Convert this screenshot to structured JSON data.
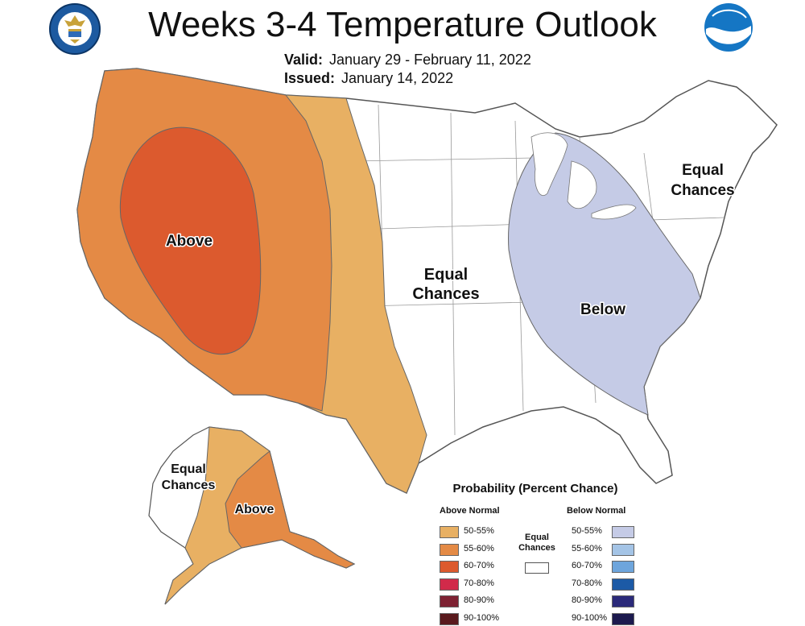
{
  "title": "Weeks 3-4 Temperature Outlook",
  "valid_label": "Valid:",
  "valid_value": "January 29 - February 11, 2022",
  "issued_label": "Issued:",
  "issued_value": "January 14, 2022",
  "map_labels": {
    "above_conus": "Above",
    "equal_central_1": "Equal",
    "equal_central_2": "Chances",
    "below": "Below",
    "equal_ne_1": "Equal",
    "equal_ne_2": "Chances",
    "equal_ak_1": "Equal",
    "equal_ak_2": "Chances",
    "above_ak": "Above"
  },
  "logos": {
    "left": "department-of-commerce-seal",
    "right": "noaa-logo"
  },
  "legend": {
    "title": "Probability (Percent Chance)",
    "above_header": "Above Normal",
    "below_header": "Below Normal",
    "equal_label_1": "Equal",
    "equal_label_2": "Chances",
    "above_items": [
      {
        "label": "50-55%",
        "color": "#e8b063"
      },
      {
        "label": "55-60%",
        "color": "#e48a45"
      },
      {
        "label": "60-70%",
        "color": "#dc5a2e"
      },
      {
        "label": "70-80%",
        "color": "#d12a4a"
      },
      {
        "label": "80-90%",
        "color": "#7e2233"
      },
      {
        "label": "90-100%",
        "color": "#5a1a1e"
      }
    ],
    "below_items": [
      {
        "label": "50-55%",
        "color": "#c5cbe6"
      },
      {
        "label": "55-60%",
        "color": "#a4c4e6"
      },
      {
        "label": "60-70%",
        "color": "#6ea5dc"
      },
      {
        "label": "70-80%",
        "color": "#1c5aa6"
      },
      {
        "label": "80-90%",
        "color": "#2b2a7a"
      },
      {
        "label": "90-100%",
        "color": "#1c1a4e"
      }
    ]
  },
  "colors": {
    "above_50_55": "#e8b063",
    "above_55_60": "#e48a45",
    "above_60_70": "#dc5a2e",
    "below_50_55": "#c5cbe6",
    "equal": "#ffffff",
    "border": "#555555"
  }
}
